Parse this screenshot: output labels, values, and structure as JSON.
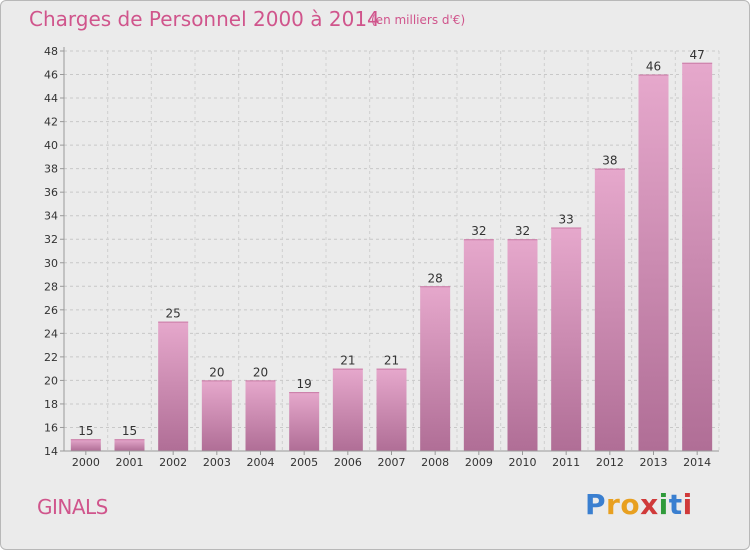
{
  "header": {
    "title": "Charges de Personnel 2000 à 2014",
    "subtitle": "(en milliers d'€)"
  },
  "footer": {
    "commune": "GINALS",
    "logo_text": "Proxiti"
  },
  "colors": {
    "title": "#d0558c",
    "bar_top": "#e6a8cc",
    "bar_bottom": "#b06e96",
    "background": "#ebebeb",
    "logo_letters": [
      "#3a7fd0",
      "#e8a020",
      "#e8a020",
      "#d03a3a",
      "#2f9a3a",
      "#3a7fd0",
      "#d03a3a"
    ]
  },
  "chart_data": {
    "type": "bar",
    "categories": [
      "2000",
      "2001",
      "2002",
      "2003",
      "2004",
      "2005",
      "2006",
      "2007",
      "2008",
      "2009",
      "2010",
      "2011",
      "2012",
      "2013",
      "2014"
    ],
    "values": [
      15,
      15,
      25,
      20,
      20,
      19,
      21,
      21,
      28,
      32,
      32,
      33,
      38,
      46,
      47
    ],
    "ylim": [
      14,
      48
    ],
    "yticks": [
      14,
      16,
      18,
      20,
      22,
      24,
      26,
      28,
      30,
      32,
      34,
      36,
      38,
      40,
      42,
      44,
      46,
      48
    ],
    "grid": true,
    "title": "Charges de Personnel 2000 à 2014",
    "subtitle": "(en milliers d'€)"
  }
}
